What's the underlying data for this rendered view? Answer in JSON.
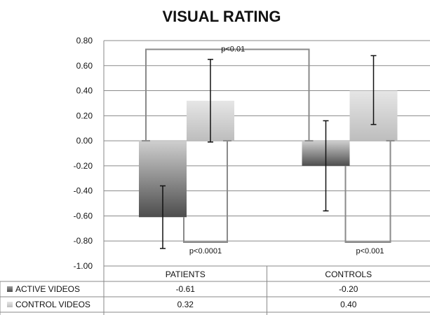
{
  "chart_data": {
    "type": "bar",
    "title": "VISUAL RATING",
    "categories": [
      "PATIENTS",
      "CONTROLS"
    ],
    "series": [
      {
        "name": "ACTIVE VIDEOS",
        "values": [
          -0.61,
          -0.2
        ],
        "error_low": [
          -0.86,
          -0.56
        ],
        "error_high": [
          -0.36,
          0.16
        ],
        "color": "#6f6f6f"
      },
      {
        "name": "CONTROL VIDEOS",
        "values": [
          0.32,
          0.4
        ],
        "error_low": [
          -0.01,
          0.13
        ],
        "error_high": [
          0.65,
          0.68
        ],
        "color": "#c9c9c9"
      }
    ],
    "ylim": [
      -1.0,
      0.8
    ],
    "yticks": [
      "0.80",
      "0.60",
      "0.40",
      "0.20",
      "0.00",
      "-0.20",
      "-0.40",
      "-0.60",
      "-0.80",
      "-1.00"
    ],
    "grid": true,
    "legend": "data-table-below",
    "data_table": {
      "rows": [
        {
          "label": "ACTIVE VIDEOS",
          "cells": [
            "-0.61",
            "-0.20"
          ]
        },
        {
          "label": "CONTROL VIDEOS",
          "cells": [
            "0.32",
            "0.40"
          ]
        }
      ]
    },
    "annotations": [
      {
        "text": "p<0.01",
        "between": "PATIENTS vs CONTROLS (bracket over bars)"
      },
      {
        "text": "p<0.0001",
        "between": "PATIENTS: active vs control"
      },
      {
        "text": "p<0.001",
        "between": "CONTROLS: active vs control"
      }
    ]
  }
}
